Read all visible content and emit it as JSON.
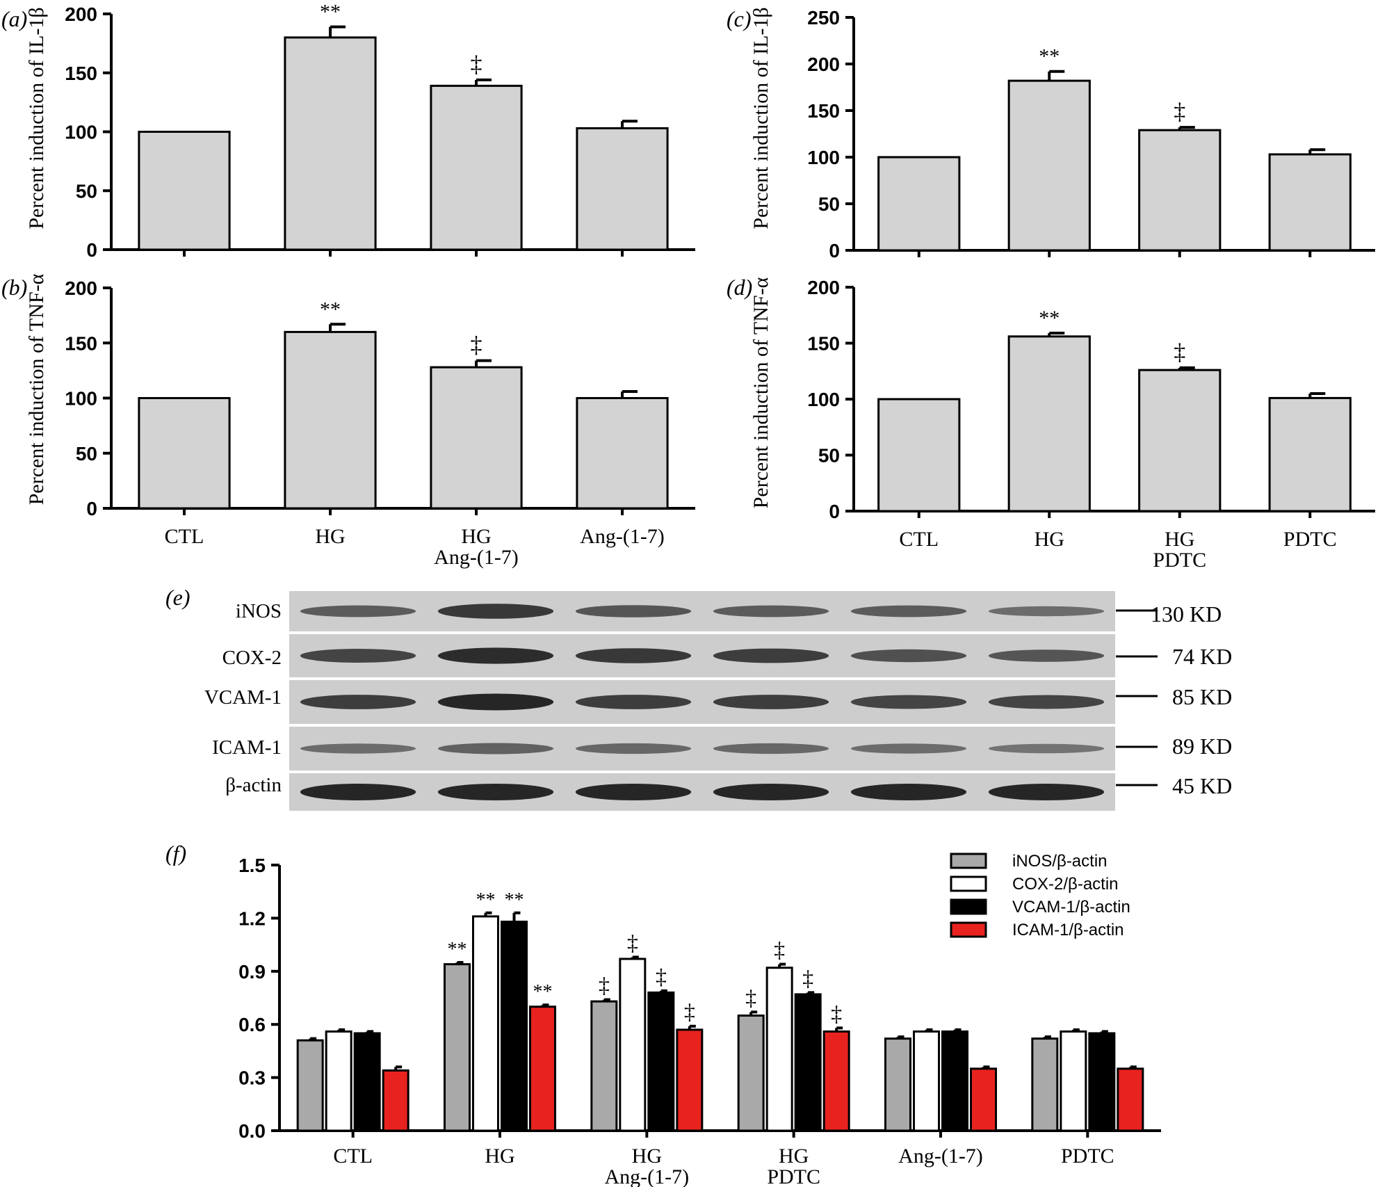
{
  "chart_data": [
    {
      "id": "a",
      "panel_label": "(a)",
      "type": "bar",
      "title": "",
      "xlabel": "",
      "ylabel": "Percent induction of IL-1β",
      "ylim": [
        0,
        200
      ],
      "yticks": [
        0,
        50,
        100,
        150,
        200
      ],
      "categories": [
        "CTL",
        "HG",
        "HG\nAng-(1-7)",
        "Ang-(1-7)"
      ],
      "values": [
        100,
        180,
        139,
        103
      ],
      "errors": [
        0,
        9,
        5,
        6
      ],
      "annotations": [
        "",
        "**",
        "‡",
        ""
      ],
      "show_category_labels": false,
      "bar_color": "#d3d3d3"
    },
    {
      "id": "b",
      "panel_label": "(b)",
      "type": "bar",
      "title": "",
      "xlabel": "",
      "ylabel": "Percent induction of TNF-α",
      "ylim": [
        0,
        200
      ],
      "yticks": [
        0,
        50,
        100,
        150,
        200
      ],
      "categories": [
        "CTL",
        "HG",
        "HG\nAng-(1-7)",
        "Ang-(1-7)"
      ],
      "values": [
        100,
        160,
        128,
        100
      ],
      "errors": [
        0,
        7,
        6,
        6
      ],
      "annotations": [
        "",
        "**",
        "‡",
        ""
      ],
      "show_category_labels": true,
      "bar_color": "#d3d3d3"
    },
    {
      "id": "c",
      "panel_label": "(c)",
      "type": "bar",
      "title": "",
      "xlabel": "",
      "ylabel": "Percent induction of IL-1β",
      "ylim": [
        0,
        250
      ],
      "yticks": [
        0,
        50,
        100,
        150,
        200,
        250
      ],
      "categories": [
        "CTL",
        "HG",
        "HG\nPDTC",
        "PDTC"
      ],
      "values": [
        100,
        182,
        129,
        103
      ],
      "errors": [
        0,
        10,
        3,
        5
      ],
      "annotations": [
        "",
        "**",
        "‡",
        ""
      ],
      "show_category_labels": false,
      "bar_color": "#d3d3d3"
    },
    {
      "id": "d",
      "panel_label": "(d)",
      "type": "bar",
      "title": "",
      "xlabel": "",
      "ylabel": "Percent induction of TNF-α",
      "ylim": [
        0,
        200
      ],
      "yticks": [
        0,
        50,
        100,
        150,
        200
      ],
      "categories": [
        "CTL",
        "HG",
        "HG\nPDTC",
        "PDTC"
      ],
      "values": [
        100,
        156,
        126,
        101
      ],
      "errors": [
        0,
        3,
        2,
        4
      ],
      "annotations": [
        "",
        "**",
        "‡",
        ""
      ],
      "show_category_labels": true,
      "bar_color": "#d3d3d3"
    },
    {
      "id": "f",
      "panel_label": "(f)",
      "type": "bar",
      "title": "",
      "xlabel": "",
      "ylabel": "",
      "ylim": [
        0,
        1.5
      ],
      "yticks": [
        "0.0",
        "0.3",
        "0.6",
        "0.9",
        "1.2",
        "1.5"
      ],
      "categories": [
        "CTL",
        "HG",
        "HG\nAng-(1-7)",
        "HG\nPDTC",
        "Ang-(1-7)",
        "PDTC"
      ],
      "series": [
        {
          "name": "iNOS/β-actin",
          "color": "#a9a9a9",
          "values": [
            0.51,
            0.94,
            0.73,
            0.65,
            0.52,
            0.52
          ],
          "errors": [
            0.01,
            0.01,
            0.01,
            0.02,
            0.01,
            0.01
          ],
          "annotations": [
            "",
            "**",
            "‡",
            "‡",
            "",
            ""
          ]
        },
        {
          "name": "COX-2/β-actin",
          "color": "#ffffff",
          "values": [
            0.56,
            1.21,
            0.97,
            0.92,
            0.56,
            0.56
          ],
          "errors": [
            0.01,
            0.02,
            0.01,
            0.02,
            0.01,
            0.01
          ],
          "annotations": [
            "",
            "**",
            "‡",
            "‡",
            "",
            ""
          ]
        },
        {
          "name": "VCAM-1/β-actin",
          "color": "#000000",
          "values": [
            0.55,
            1.18,
            0.78,
            0.77,
            0.56,
            0.55
          ],
          "errors": [
            0.01,
            0.05,
            0.01,
            0.01,
            0.01,
            0.01
          ],
          "annotations": [
            "",
            "**",
            "‡",
            "‡",
            "",
            ""
          ]
        },
        {
          "name": "ICAM-1/β-actin",
          "color": "#e8231f",
          "values": [
            0.34,
            0.7,
            0.57,
            0.56,
            0.35,
            0.35
          ],
          "errors": [
            0.02,
            0.01,
            0.02,
            0.02,
            0.01,
            0.01
          ],
          "annotations": [
            "",
            "**",
            "‡",
            "‡",
            "",
            ""
          ]
        }
      ],
      "legend_position": "top-right"
    }
  ],
  "blot": {
    "panel_label": "(e)",
    "rows": [
      {
        "label": "iNOS",
        "marker": "130 KD",
        "band_strength": [
          0.55,
          0.85,
          0.6,
          0.55,
          0.55,
          0.4
        ]
      },
      {
        "label": "COX-2",
        "marker": "74 KD",
        "band_strength": [
          0.75,
          0.95,
          0.85,
          0.8,
          0.65,
          0.6
        ]
      },
      {
        "label": "VCAM-1",
        "marker": "85 KD",
        "band_strength": [
          0.8,
          1.0,
          0.8,
          0.8,
          0.75,
          0.75
        ]
      },
      {
        "label": "ICAM-1",
        "marker": "89 KD",
        "band_strength": [
          0.4,
          0.5,
          0.45,
          0.45,
          0.4,
          0.35
        ]
      },
      {
        "label": "β-actin",
        "marker": "45 KD",
        "band_strength": [
          1.0,
          1.0,
          1.0,
          1.0,
          1.0,
          1.0
        ]
      }
    ]
  }
}
